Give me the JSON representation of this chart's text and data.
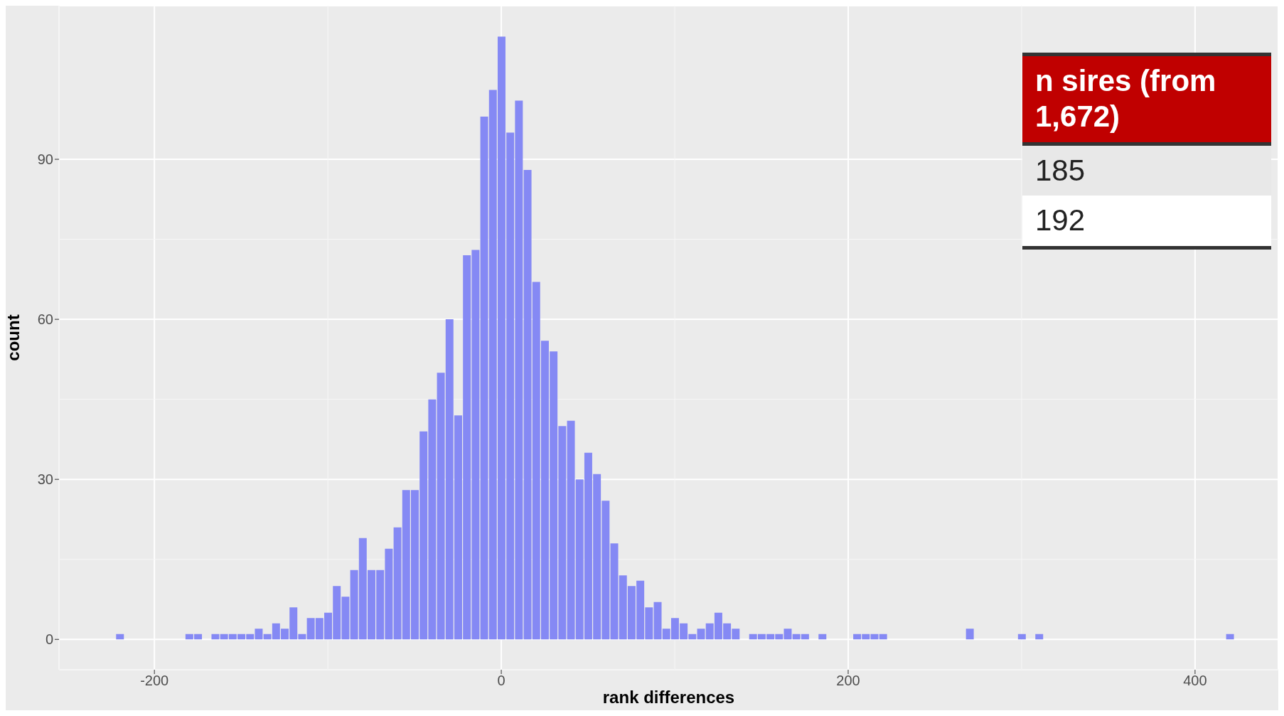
{
  "chart_data": {
    "type": "histogram",
    "xlabel": "rank differences",
    "ylabel": "count",
    "bins": [
      -222.5,
      -217.5,
      -212.5,
      -207.5,
      -202.5,
      -197.5,
      -192.5,
      -187.5,
      -182.5,
      -177.5,
      -172.5,
      -167.5,
      -162.5,
      -157.5,
      -152.5,
      -147.5,
      -142.5,
      -137.5,
      -132.5,
      -127.5,
      -122.5,
      -117.5,
      -112.5,
      -107.5,
      -102.5,
      -97.5,
      -92.5,
      -87.5,
      -82.5,
      -77.5,
      -72.5,
      -67.5,
      -62.5,
      -57.5,
      -52.5,
      -47.5,
      -42.5,
      -37.5,
      -32.5,
      -27.5,
      -22.5,
      -17.5,
      -12.5,
      -7.5,
      -2.5,
      2.5,
      7.5,
      12.5,
      17.5,
      22.5,
      27.5,
      32.5,
      37.5,
      42.5,
      47.5,
      52.5,
      57.5,
      62.5,
      67.5,
      72.5,
      77.5,
      82.5,
      87.5,
      92.5,
      97.5,
      102.5,
      107.5,
      112.5,
      117.5,
      122.5,
      127.5,
      132.5,
      137.5,
      142.5,
      147.5,
      152.5,
      157.5,
      162.5,
      167.5,
      172.5,
      177.5,
      182.5,
      187.5,
      192.5,
      197.5,
      202.5,
      207.5,
      212.5,
      217.5,
      222.5,
      227.5,
      232.5,
      237.5,
      242.5,
      247.5,
      252.5,
      257.5,
      262.5,
      267.5,
      272.5,
      277.5,
      282.5,
      287.5,
      292.5,
      297.5,
      302.5,
      307.5,
      312.5,
      317.5,
      322.5,
      327.5,
      332.5,
      337.5,
      342.5,
      347.5,
      352.5,
      357.5,
      362.5,
      367.5,
      372.5,
      377.5,
      382.5,
      387.5,
      392.5,
      397.5,
      402.5,
      407.5,
      412.5,
      417.5,
      422.5
    ],
    "values": [
      1,
      0,
      0,
      0,
      0,
      0,
      0,
      0,
      1,
      1,
      0,
      1,
      1,
      1,
      1,
      1,
      2,
      1,
      3,
      2,
      6,
      1,
      4,
      4,
      5,
      10,
      8,
      13,
      19,
      13,
      13,
      17,
      21,
      28,
      28,
      39,
      45,
      50,
      60,
      42,
      72,
      73,
      98,
      103,
      113,
      95,
      101,
      88,
      67,
      56,
      54,
      40,
      41,
      30,
      35,
      31,
      26,
      18,
      12,
      10,
      11,
      6,
      7,
      2,
      4,
      3,
      1,
      2,
      3,
      5,
      3,
      2,
      0,
      1,
      1,
      1,
      1,
      2,
      1,
      1,
      0,
      1,
      0,
      0,
      0,
      1,
      1,
      1,
      1,
      0,
      0,
      0,
      0,
      0,
      0,
      0,
      0,
      0,
      2,
      0,
      0,
      0,
      0,
      0,
      1,
      0,
      1,
      0,
      0,
      0,
      0,
      0,
      0,
      0,
      0,
      0,
      0,
      0,
      0,
      0,
      0,
      0,
      0,
      0,
      0,
      0,
      0,
      0,
      1
    ],
    "color": "#8589f4",
    "xlim": [
      -255,
      448
    ],
    "xticks": [
      -200,
      0,
      200,
      400
    ],
    "ylim": [
      -5.7,
      118.8
    ],
    "yticks": [
      0,
      30,
      60,
      90
    ],
    "grid": true,
    "annotations": [
      "n sires (from 1,672)",
      "185",
      "192"
    ]
  }
}
